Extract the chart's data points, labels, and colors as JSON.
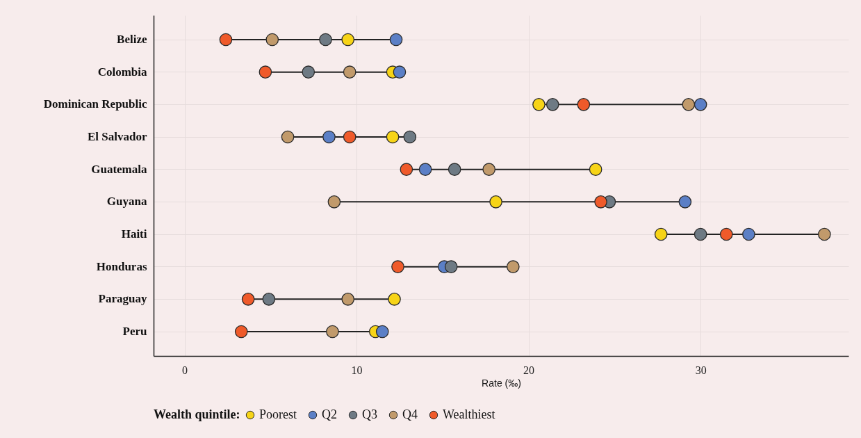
{
  "chart_data": {
    "type": "scatter",
    "orientation": "horizontal",
    "xlabel": "Rate (‰)",
    "legend_title": "Wealth quintile:",
    "legend": "bottom",
    "grid": true,
    "marker": "circle",
    "categories": [
      "Belize",
      "Colombia",
      "Dominican Republic",
      "El Salvador",
      "Guatemala",
      "Guyana",
      "Haiti",
      "Honduras",
      "Paraguay",
      "Peru"
    ],
    "xlim": [
      -1.8,
      38.6
    ],
    "xticks": [
      0,
      10,
      20,
      30
    ],
    "series": [
      {
        "name": "Poorest",
        "color": "#f7d417",
        "values": [
          9.5,
          12.1,
          20.6,
          12.1,
          23.9,
          18.1,
          27.7,
          null,
          12.2,
          11.1
        ]
      },
      {
        "name": "Q2",
        "color": "#5b7fc6",
        "values": [
          12.3,
          12.5,
          30.0,
          8.4,
          14.0,
          29.1,
          32.8,
          15.1,
          null,
          11.5
        ]
      },
      {
        "name": "Q3",
        "color": "#6e7a84",
        "values": [
          8.2,
          7.2,
          21.4,
          13.1,
          15.7,
          24.7,
          30.0,
          15.5,
          4.9,
          null
        ]
      },
      {
        "name": "Q4",
        "color": "#c19a6b",
        "values": [
          5.1,
          9.6,
          29.3,
          6.0,
          17.7,
          8.7,
          37.2,
          19.1,
          9.5,
          8.6
        ]
      },
      {
        "name": "Wealthiest",
        "color": "#ef5a2a",
        "values": [
          2.4,
          4.7,
          23.2,
          9.6,
          12.9,
          24.2,
          31.5,
          12.4,
          3.7,
          3.3
        ]
      }
    ]
  }
}
